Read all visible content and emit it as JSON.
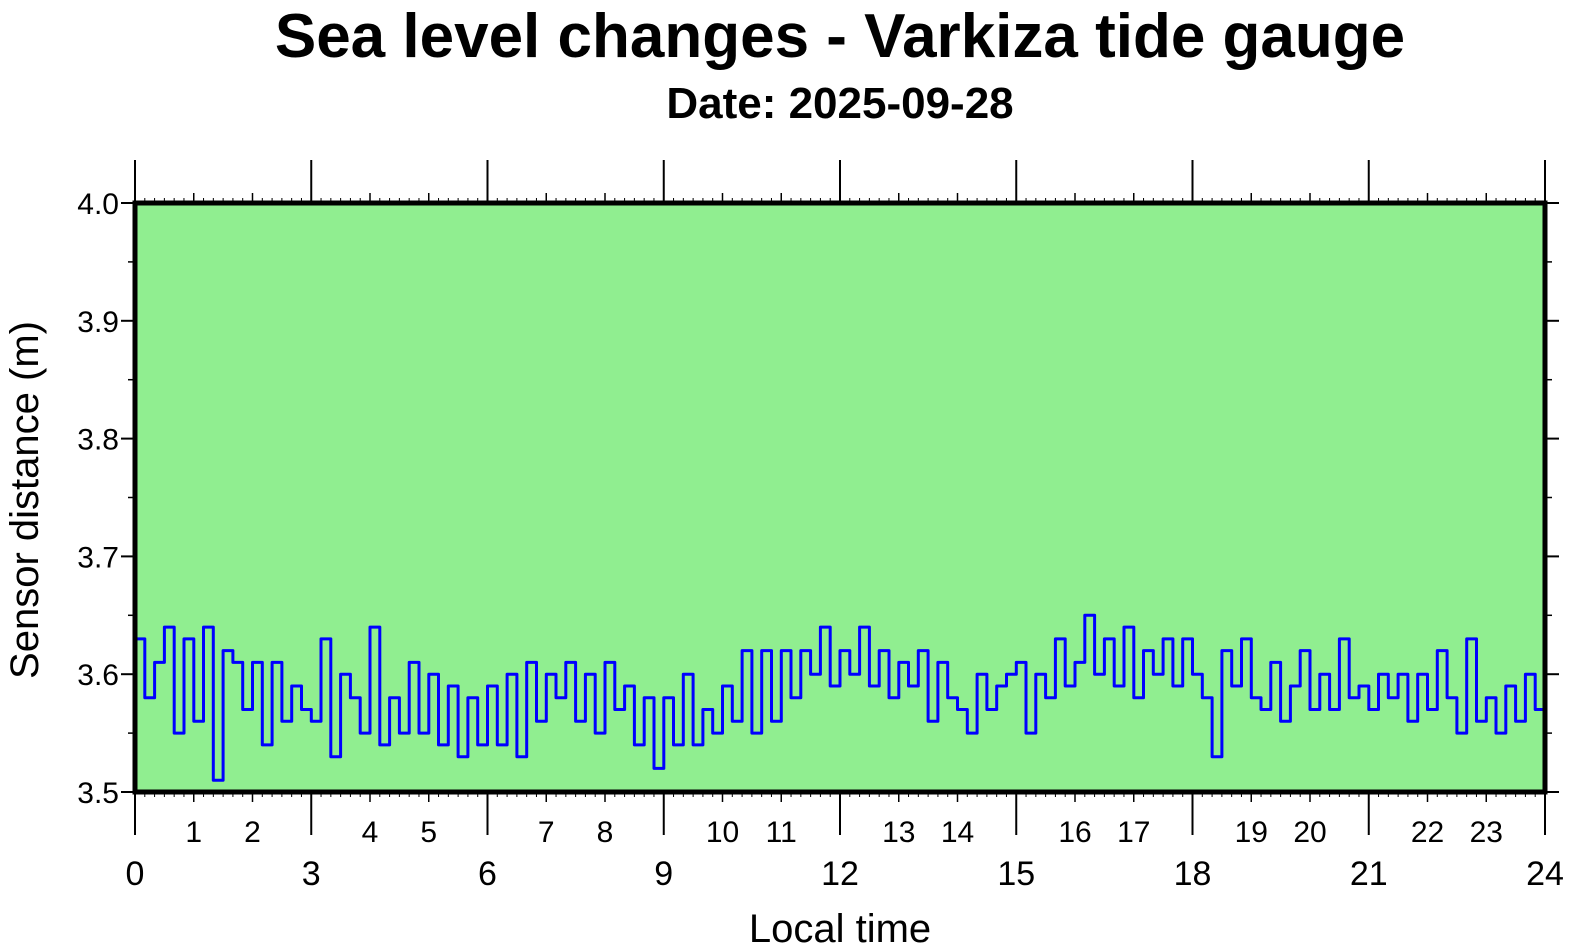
{
  "chart_data": {
    "type": "line",
    "title": "Sea level changes - Varkiza tide gauge",
    "subtitle": "Date: 2025-09-28",
    "xlabel": "Local time",
    "ylabel": "Sensor distance (m)",
    "xlim": [
      0,
      24
    ],
    "ylim": [
      3.5,
      4.0
    ],
    "x_minor_tick_labels": [
      "1",
      "2",
      "4",
      "5",
      "7",
      "8",
      "10",
      "11",
      "13",
      "14",
      "16",
      "17",
      "19",
      "20",
      "22",
      "23"
    ],
    "x_major_tick_labels": [
      "0",
      "3",
      "6",
      "9",
      "12",
      "15",
      "18",
      "21",
      "24"
    ],
    "y_tick_labels": [
      "3.5",
      "3.6",
      "3.7",
      "3.8",
      "3.9",
      "4.0"
    ],
    "grid": false,
    "background_color": "#90EE90",
    "line_color": "#0000FF",
    "x_step_hours": 0.16667,
    "series": [
      {
        "values": [
          3.63,
          3.58,
          3.61,
          3.64,
          3.55,
          3.63,
          3.56,
          3.64,
          3.51,
          3.62,
          3.61,
          3.57,
          3.61,
          3.54,
          3.61,
          3.56,
          3.59,
          3.57,
          3.56,
          3.63,
          3.53,
          3.6,
          3.58,
          3.55,
          3.64,
          3.54,
          3.58,
          3.55,
          3.61,
          3.55,
          3.6,
          3.54,
          3.59,
          3.53,
          3.58,
          3.54,
          3.59,
          3.54,
          3.6,
          3.53,
          3.61,
          3.56,
          3.6,
          3.58,
          3.61,
          3.56,
          3.6,
          3.55,
          3.61,
          3.57,
          3.59,
          3.54,
          3.58,
          3.52,
          3.58,
          3.54,
          3.6,
          3.54,
          3.57,
          3.55,
          3.59,
          3.56,
          3.62,
          3.55,
          3.62,
          3.56,
          3.62,
          3.58,
          3.62,
          3.6,
          3.64,
          3.59,
          3.62,
          3.6,
          3.64,
          3.59,
          3.62,
          3.58,
          3.61,
          3.59,
          3.62,
          3.56,
          3.61,
          3.58,
          3.57,
          3.55,
          3.6,
          3.57,
          3.59,
          3.6,
          3.61,
          3.55,
          3.6,
          3.58,
          3.63,
          3.59,
          3.61,
          3.65,
          3.6,
          3.63,
          3.59,
          3.64,
          3.58,
          3.62,
          3.6,
          3.63,
          3.59,
          3.63,
          3.6,
          3.58,
          3.53,
          3.62,
          3.59,
          3.63,
          3.58,
          3.57,
          3.61,
          3.56,
          3.59,
          3.62,
          3.57,
          3.6,
          3.57,
          3.63,
          3.58,
          3.59,
          3.57,
          3.6,
          3.58,
          3.6,
          3.56,
          3.6,
          3.57,
          3.62,
          3.58,
          3.55,
          3.63,
          3.56,
          3.58,
          3.55,
          3.59,
          3.56,
          3.6,
          3.57,
          3.55
        ]
      }
    ]
  }
}
